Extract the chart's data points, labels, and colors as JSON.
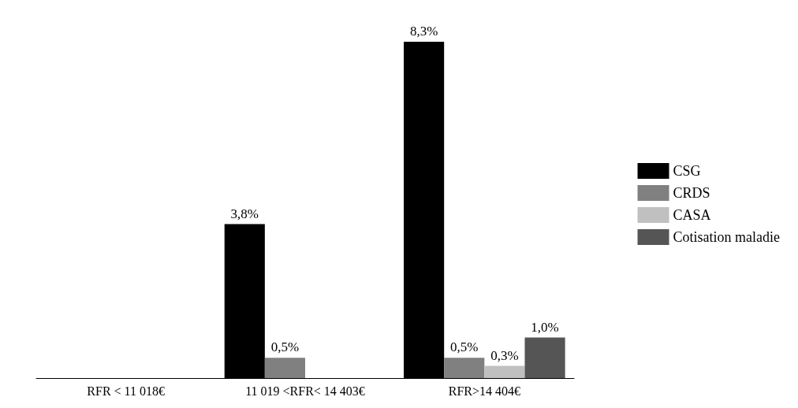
{
  "chart_data": {
    "type": "bar",
    "categories": [
      "RFR < 11 018€",
      "11 019 <RFR< 14 403€",
      "RFR>14 404€"
    ],
    "series": [
      {
        "name": "CSG",
        "color": "#000000",
        "values": [
          null,
          3.8,
          8.3
        ],
        "value_labels": [
          null,
          "3,8%",
          "8,3%"
        ]
      },
      {
        "name": "CRDS",
        "color": "#808080",
        "values": [
          null,
          0.5,
          0.5
        ],
        "value_labels": [
          null,
          "0,5%",
          "0,5%"
        ]
      },
      {
        "name": "CASA",
        "color": "#c0c0c0",
        "values": [
          null,
          null,
          0.3
        ],
        "value_labels": [
          null,
          null,
          "0,3%"
        ]
      },
      {
        "name": "Cotisation maladie",
        "color": "#555555",
        "values": [
          null,
          null,
          1.0
        ],
        "value_labels": [
          null,
          null,
          "1,0%"
        ]
      }
    ],
    "legend": "right"
  }
}
